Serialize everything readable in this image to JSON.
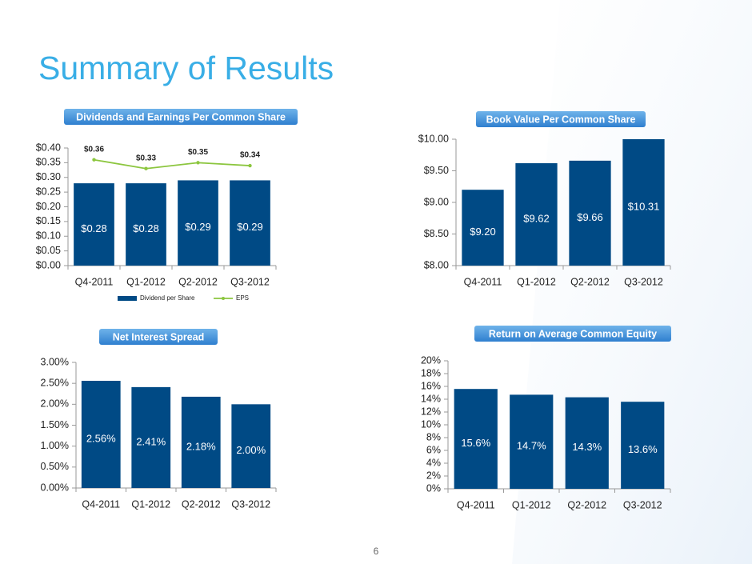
{
  "title": "Summary of Results",
  "page_number": "6",
  "chart_data": [
    {
      "type": "bar",
      "title": "Dividends and Earnings Per Common Share",
      "categories": [
        "Q4-2011",
        "Q1-2012",
        "Q2-2012",
        "Q3-2012"
      ],
      "series": [
        {
          "name": "Dividend per Share",
          "type": "bar",
          "color": "#004a85",
          "values": [
            0.28,
            0.28,
            0.29,
            0.29
          ],
          "value_labels": [
            "$0.28",
            "$0.28",
            "$0.29",
            "$0.29"
          ]
        },
        {
          "name": "EPS",
          "type": "line",
          "color": "#8cc63f",
          "values": [
            0.36,
            0.33,
            0.35,
            0.34
          ],
          "value_labels": [
            "$0.36",
            "$0.33",
            "$0.35",
            "$0.34"
          ]
        }
      ],
      "ylim": [
        0,
        0.4
      ],
      "yticks": [
        {
          "value": 0,
          "label": "$0.00"
        },
        {
          "value": 0.05,
          "label": "$0.05"
        },
        {
          "value": 0.1,
          "label": "$0.10"
        },
        {
          "value": 0.15,
          "label": "$0.15"
        },
        {
          "value": 0.2,
          "label": "$0.20"
        },
        {
          "value": 0.25,
          "label": "$0.25"
        },
        {
          "value": 0.3,
          "label": "$0.30"
        },
        {
          "value": 0.35,
          "label": "$0.35"
        },
        {
          "value": 0.4,
          "label": "$0.40"
        }
      ],
      "legend": "bottom"
    },
    {
      "type": "bar",
      "title": "Book Value Per Common Share",
      "categories": [
        "Q4-2011",
        "Q1-2012",
        "Q2-2012",
        "Q3-2012"
      ],
      "values": [
        9.2,
        9.62,
        9.66,
        10.31
      ],
      "value_labels": [
        "$9.20",
        "$9.62",
        "$9.66",
        "$10.31"
      ],
      "color": "#004a85",
      "ylim": [
        8,
        10
      ],
      "yticks": [
        {
          "value": 8,
          "label": "$8.00"
        },
        {
          "value": 8.5,
          "label": "$8.50"
        },
        {
          "value": 9,
          "label": "$9.00"
        },
        {
          "value": 9.5,
          "label": "$9.50"
        },
        {
          "value": 10,
          "label": "$10.00"
        }
      ]
    },
    {
      "type": "bar",
      "title": "Net Interest Spread",
      "categories": [
        "Q4-2011",
        "Q1-2012",
        "Q2-2012",
        "Q3-2012"
      ],
      "values": [
        2.56,
        2.41,
        2.18,
        2.0
      ],
      "value_labels": [
        "2.56%",
        "2.41%",
        "2.18%",
        "2.00%"
      ],
      "color": "#004a85",
      "ylim": [
        0,
        3
      ],
      "yticks": [
        {
          "value": 0,
          "label": "0.00%"
        },
        {
          "value": 0.5,
          "label": "0.50%"
        },
        {
          "value": 1,
          "label": "1.00%"
        },
        {
          "value": 1.5,
          "label": "1.50%"
        },
        {
          "value": 2,
          "label": "2.00%"
        },
        {
          "value": 2.5,
          "label": "2.50%"
        },
        {
          "value": 3,
          "label": "3.00%"
        }
      ]
    },
    {
      "type": "bar",
      "title": "Return on Average Common Equity",
      "categories": [
        "Q4-2011",
        "Q1-2012",
        "Q2-2012",
        "Q3-2012"
      ],
      "values": [
        15.6,
        14.7,
        14.3,
        13.6
      ],
      "value_labels": [
        "15.6%",
        "14.7%",
        "14.3%",
        "13.6%"
      ],
      "color": "#004a85",
      "ylim": [
        0,
        20
      ],
      "yticks": [
        {
          "value": 0,
          "label": "0%"
        },
        {
          "value": 2,
          "label": "2%"
        },
        {
          "value": 4,
          "label": "4%"
        },
        {
          "value": 6,
          "label": "6%"
        },
        {
          "value": 8,
          "label": "8%"
        },
        {
          "value": 10,
          "label": "10%"
        },
        {
          "value": 12,
          "label": "12%"
        },
        {
          "value": 14,
          "label": "14%"
        },
        {
          "value": 16,
          "label": "16%"
        },
        {
          "value": 18,
          "label": "18%"
        },
        {
          "value": 20,
          "label": "20%"
        }
      ]
    }
  ]
}
